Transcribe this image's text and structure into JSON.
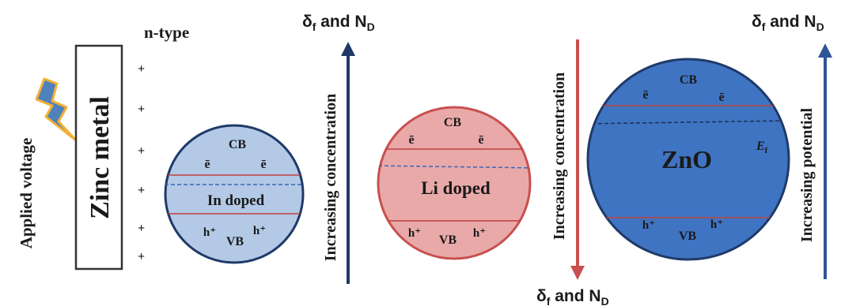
{
  "labels": {
    "applied_voltage": "Applied voltage",
    "zinc_metal": "Zinc metal",
    "n_type": "n-type",
    "plus": "+"
  },
  "in_doped": {
    "title": "In doped",
    "cb": "CB",
    "vb": "VB",
    "electron": "ē",
    "hole": "h⁺"
  },
  "li_doped": {
    "title": "Li doped",
    "cb": "CB",
    "vb": "VB",
    "electron": "ē",
    "hole": "h⁺"
  },
  "zno": {
    "title": "ZnO",
    "cb": "CB",
    "vb": "VB",
    "electron": "ē",
    "hole": "h⁺",
    "fermi": "E",
    "fermi_sub": "f"
  },
  "arrows": {
    "concentration_up": "Increasing concentration",
    "concentration_down": "Increasing concentration",
    "potential": "Increasing potential",
    "delta_f": "δ",
    "delta_sub": "f",
    "and": " and N",
    "n_sub": "D"
  },
  "colors": {
    "in_fill": "#b3c9e6",
    "li_fill": "#e9a9a9",
    "zno_fill": "#3f74c2",
    "navy": "#1f3a68",
    "blue_arrow": "#2e5597",
    "red_arrow": "#c8504f",
    "band_line": "#c0413f",
    "fermi_line": "#3b67b8",
    "bolt_fill": "#4f81bd",
    "bolt_stroke": "#f2b134"
  }
}
